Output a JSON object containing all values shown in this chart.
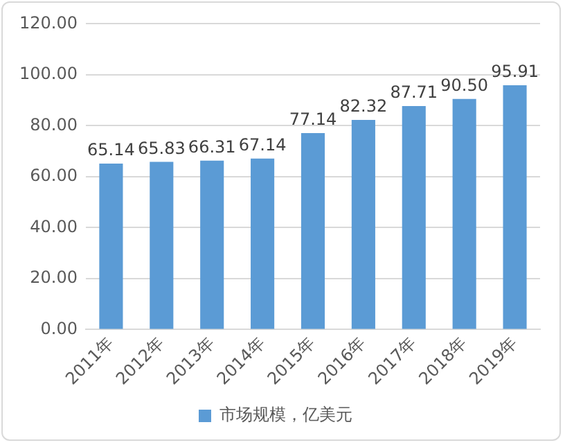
{
  "chart_data": {
    "type": "bar",
    "categories": [
      "2011年",
      "2012年",
      "2013年",
      "2014年",
      "2015年",
      "2016年",
      "2017年",
      "2018年",
      "2019年"
    ],
    "series": [
      {
        "name": "市场规模，亿美元",
        "color": "#5b9bd5",
        "values": [
          65.14,
          65.83,
          66.31,
          67.14,
          77.14,
          82.32,
          87.71,
          90.5,
          95.91
        ],
        "value_labels": [
          "65.14",
          "65.83",
          "66.31",
          "67.14",
          "77.14",
          "82.32",
          "87.71",
          "90.50",
          "95.91"
        ]
      }
    ],
    "ylim": [
      0,
      120
    ],
    "yticks": [
      {
        "value": 0,
        "label": "0.00"
      },
      {
        "value": 20,
        "label": "20.00"
      },
      {
        "value": 40,
        "label": "40.00"
      },
      {
        "value": 60,
        "label": "60.00"
      },
      {
        "value": 80,
        "label": "80.00"
      },
      {
        "value": 100,
        "label": "100.00"
      },
      {
        "value": 120,
        "label": "120.00"
      }
    ],
    "grid": "y",
    "legend": "bottom"
  }
}
